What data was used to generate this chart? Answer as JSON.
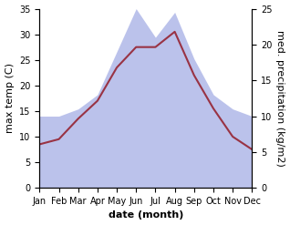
{
  "months": [
    "Jan",
    "Feb",
    "Mar",
    "Apr",
    "May",
    "Jun",
    "Jul",
    "Aug",
    "Sep",
    "Oct",
    "Nov",
    "Dec"
  ],
  "temp": [
    8.5,
    9.5,
    13.5,
    17.0,
    23.5,
    27.5,
    27.5,
    30.5,
    22.0,
    15.5,
    10.0,
    7.5
  ],
  "precip_kg": [
    10.0,
    10.0,
    11.0,
    13.0,
    19.0,
    25.0,
    21.0,
    24.5,
    18.0,
    13.0,
    11.0,
    10.0
  ],
  "temp_color": "#993344",
  "precip_color": "#b0b8e8",
  "left_ylim": [
    0,
    35
  ],
  "right_ylim": [
    0,
    25
  ],
  "left_yticks": [
    0,
    5,
    10,
    15,
    20,
    25,
    30,
    35
  ],
  "right_yticks": [
    0,
    5,
    10,
    15,
    20,
    25
  ],
  "xlabel": "date (month)",
  "ylabel_left": "max temp (C)",
  "ylabel_right": "med. precipitation (kg/m2)",
  "bg_color": "#ffffff",
  "label_fontsize": 8,
  "tick_fontsize": 7
}
